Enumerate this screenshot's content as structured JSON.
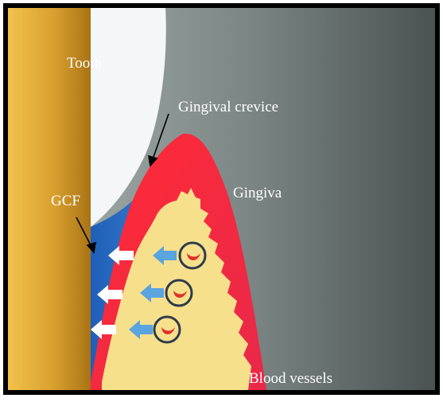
{
  "diagram": {
    "labels": {
      "tooth": "Tooth",
      "gingival_crevice": "Gingival crevice",
      "gingiva": "Gingiva",
      "gcf": "GCF",
      "blood_vessels": "Blood vessels"
    },
    "colors": {
      "root_gold": "#d9a030",
      "enamel_white": "#f4f6f8",
      "gingiva_red": "#e8294a",
      "connective_tissue": "#f6e08c",
      "gcf_blue": "#2a6fc4",
      "flow_arrow_blue": "#5aa4e0",
      "background_gray": "#7d8886"
    }
  }
}
